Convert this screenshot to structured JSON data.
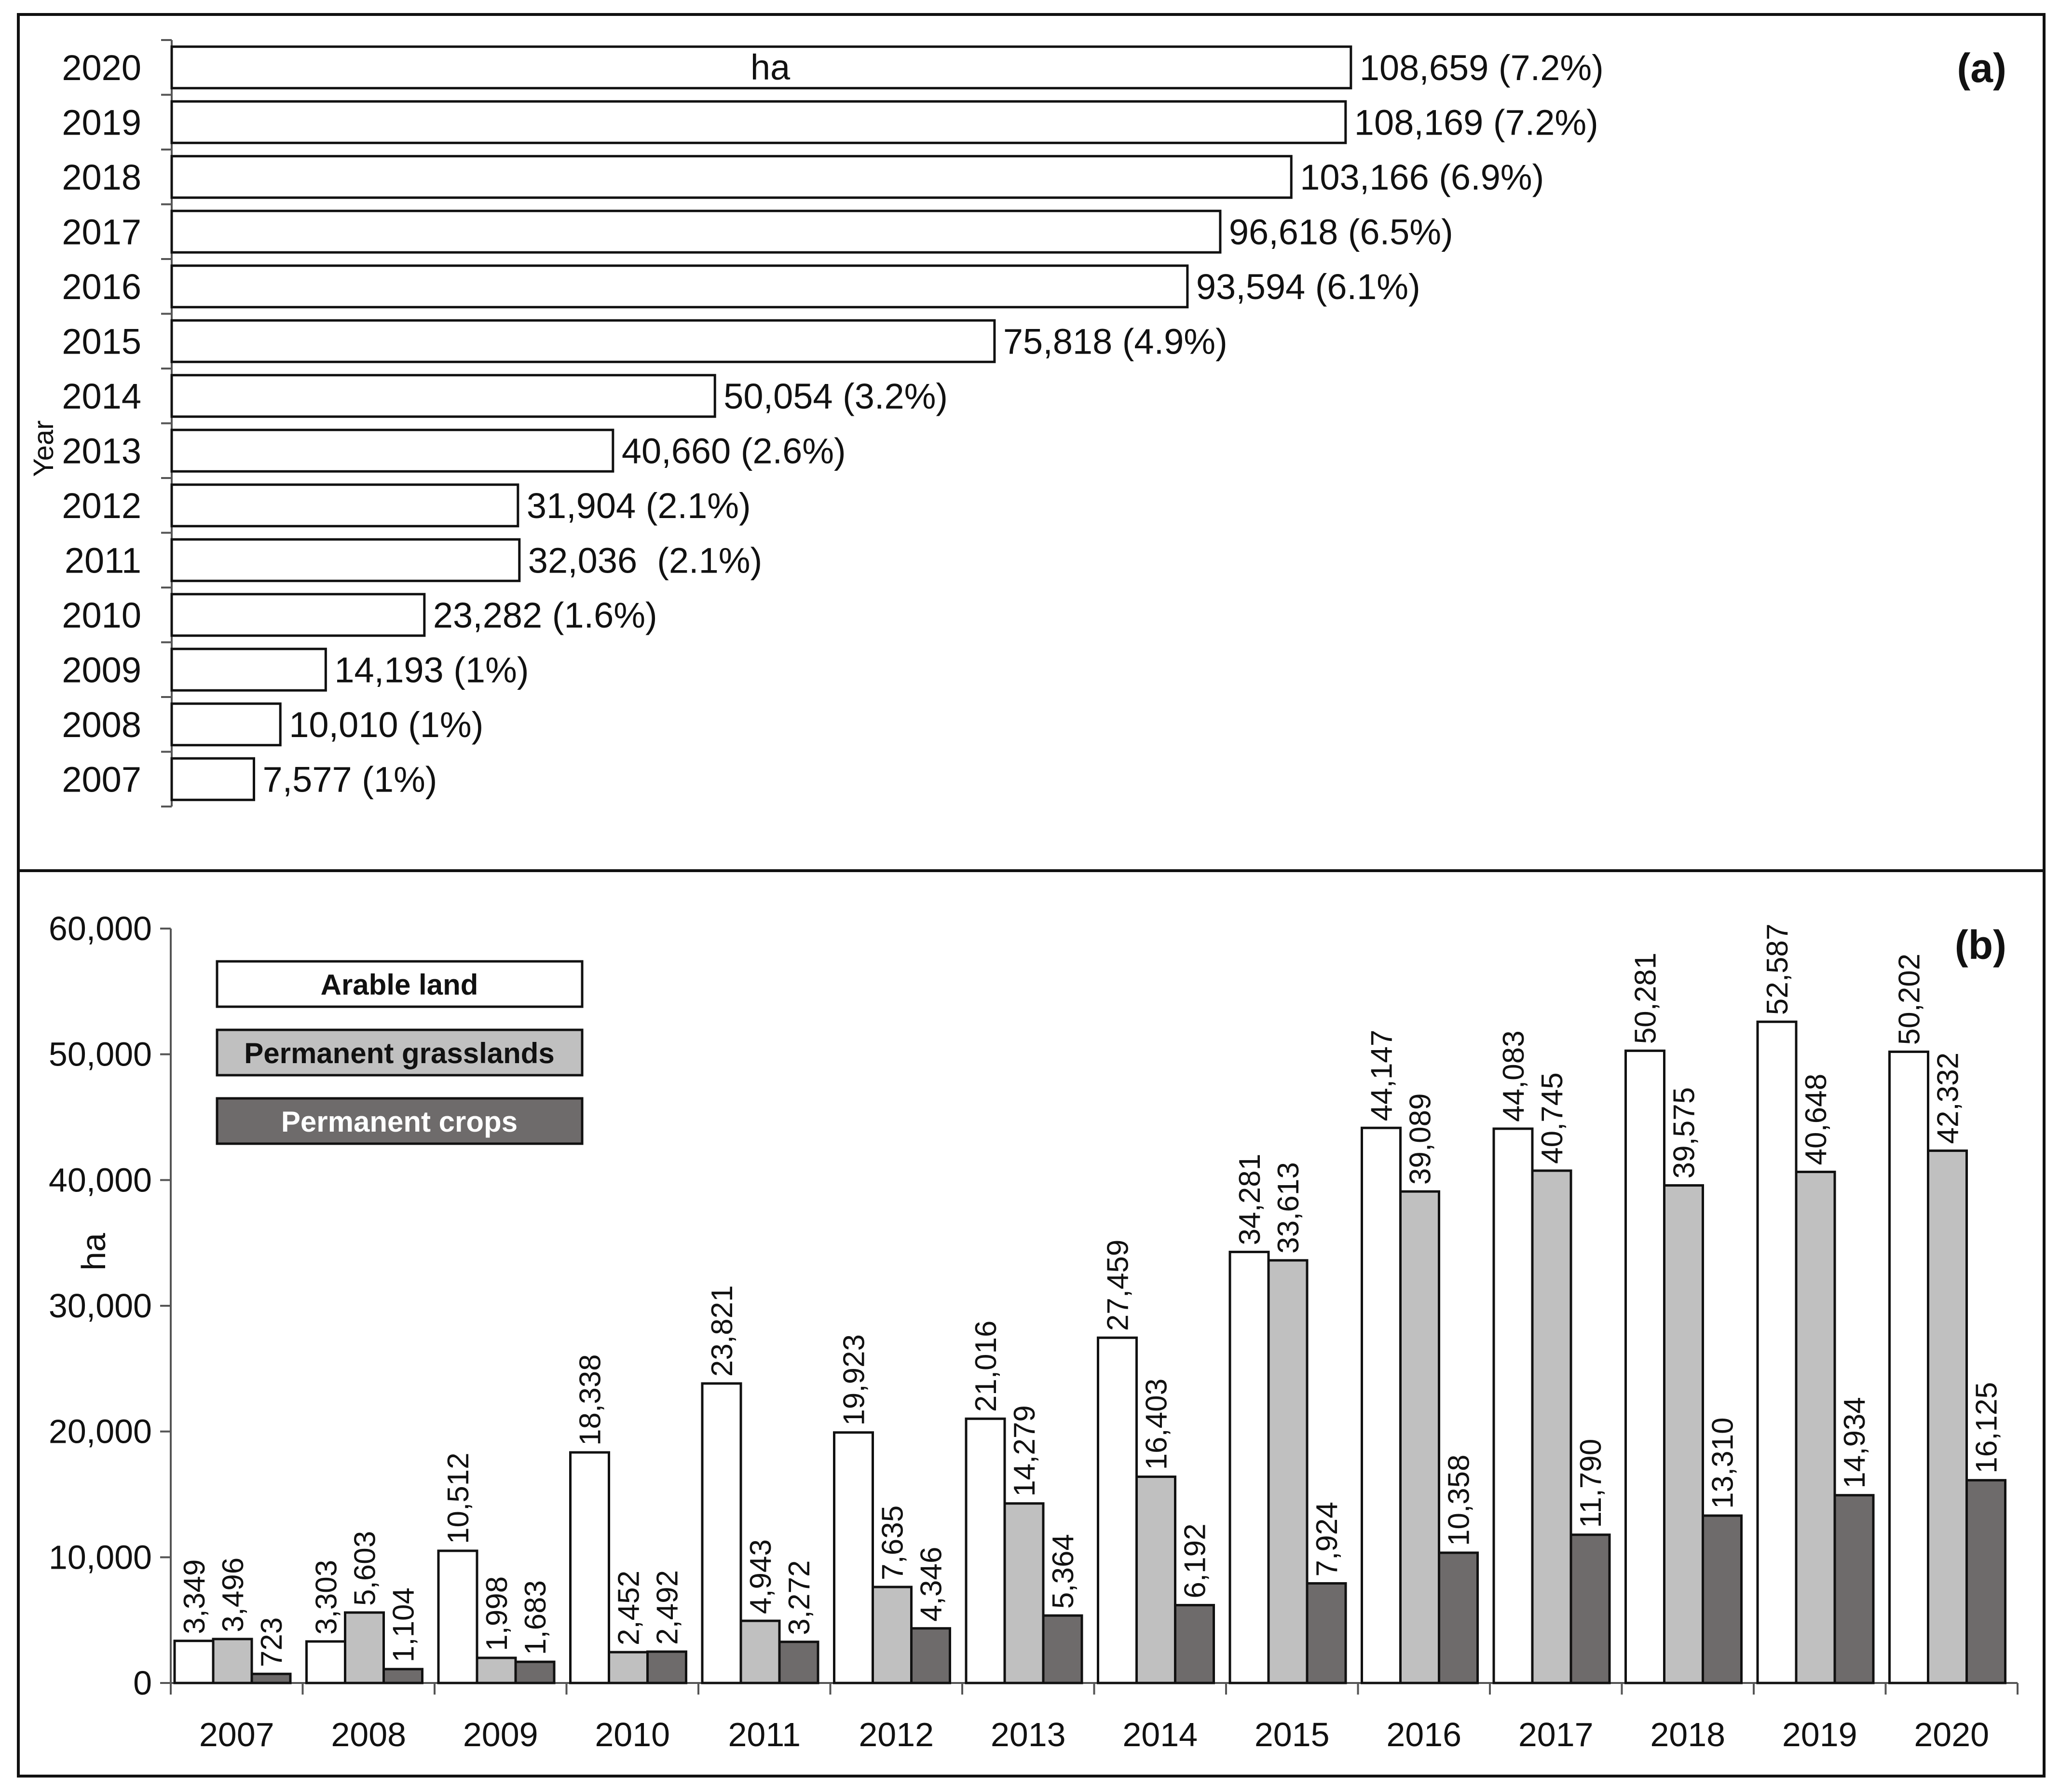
{
  "chart_data": [
    {
      "panel": "(a)",
      "type": "bar",
      "orientation": "horizontal",
      "unit_label": "ha",
      "ylabel": "Year",
      "categories": [
        "2020",
        "2019",
        "2018",
        "2017",
        "2016",
        "2015",
        "2014",
        "2013",
        "2012",
        "2011",
        "2010",
        "2009",
        "2008",
        "2007"
      ],
      "values": [
        108659,
        108169,
        103166,
        96618,
        93594,
        75818,
        50054,
        40660,
        31904,
        32036,
        23282,
        14193,
        10010,
        7577
      ],
      "value_labels": [
        "108,659 (7.2%)",
        "108,169 (7.2%)",
        "103,166 (6.9%)",
        "96,618 (6.5%)",
        "93,594 (6.1%)",
        "75,818 (4.9%)",
        "50,054 (3.2%)",
        "40,660 (2.6%)",
        "31,904 (2.1%)",
        "32,036  (2.1%)",
        "23,282 (1.6%)",
        "14,193 (1%)",
        "10,010 (1%)",
        "7,577 (1%)"
      ],
      "bar_color": "#ffffff",
      "xlim": [
        0,
        110000
      ]
    },
    {
      "panel": "(b)",
      "type": "bar",
      "orientation": "vertical",
      "ylabel": "ha",
      "xlabel": "",
      "ylim": [
        0,
        60000
      ],
      "yticks": [
        0,
        10000,
        20000,
        30000,
        40000,
        50000,
        60000
      ],
      "ytick_labels": [
        "0",
        "10,000",
        "20,000",
        "30,000",
        "40,000",
        "50,000",
        "60,000"
      ],
      "categories": [
        "2007",
        "2008",
        "2009",
        "2010",
        "2011",
        "2012",
        "2013",
        "2014",
        "2015",
        "2016",
        "2017",
        "2018",
        "2019",
        "2020"
      ],
      "series": [
        {
          "name": "Arable land",
          "color": "#ffffff",
          "text_color": "#111111",
          "values": [
            3349,
            3303,
            10512,
            18338,
            23821,
            19923,
            21016,
            27459,
            34281,
            44147,
            44083,
            50281,
            52587,
            50202
          ],
          "labels": [
            "3,349",
            "3,303",
            "10,512",
            "18,338",
            "23,821",
            "19,923",
            "21,016",
            "27,459",
            "34,281",
            "44,147",
            "44,083",
            "50,281",
            "52,587",
            "50,202"
          ]
        },
        {
          "name": "Permanent grasslands",
          "color": "#c0c0c0",
          "text_color": "#111111",
          "values": [
            3496,
            5603,
            1998,
            2452,
            4943,
            7635,
            14279,
            16403,
            33613,
            39089,
            40745,
            39575,
            40648,
            42332
          ],
          "labels": [
            "3,496",
            "5,603",
            "1,998",
            "2,452",
            "4,943",
            "7,635",
            "14,279",
            "16,403",
            "33,613",
            "39,089",
            "40,745",
            "39,575",
            "40,648",
            "42,332"
          ]
        },
        {
          "name": "Permanent crops",
          "color": "#6e6b6b",
          "text_color": "#ffffff",
          "values": [
            723,
            1104,
            1683,
            2492,
            3272,
            4346,
            5364,
            6192,
            7924,
            10358,
            11790,
            13310,
            14934,
            16125
          ],
          "labels": [
            "723",
            "1,104",
            "1,683",
            "2,492",
            "3,272",
            "4,346",
            "5,364",
            "6,192",
            "7,924",
            "10,358",
            "11,790",
            "13,310",
            "14,934",
            "16,125"
          ]
        }
      ]
    }
  ]
}
